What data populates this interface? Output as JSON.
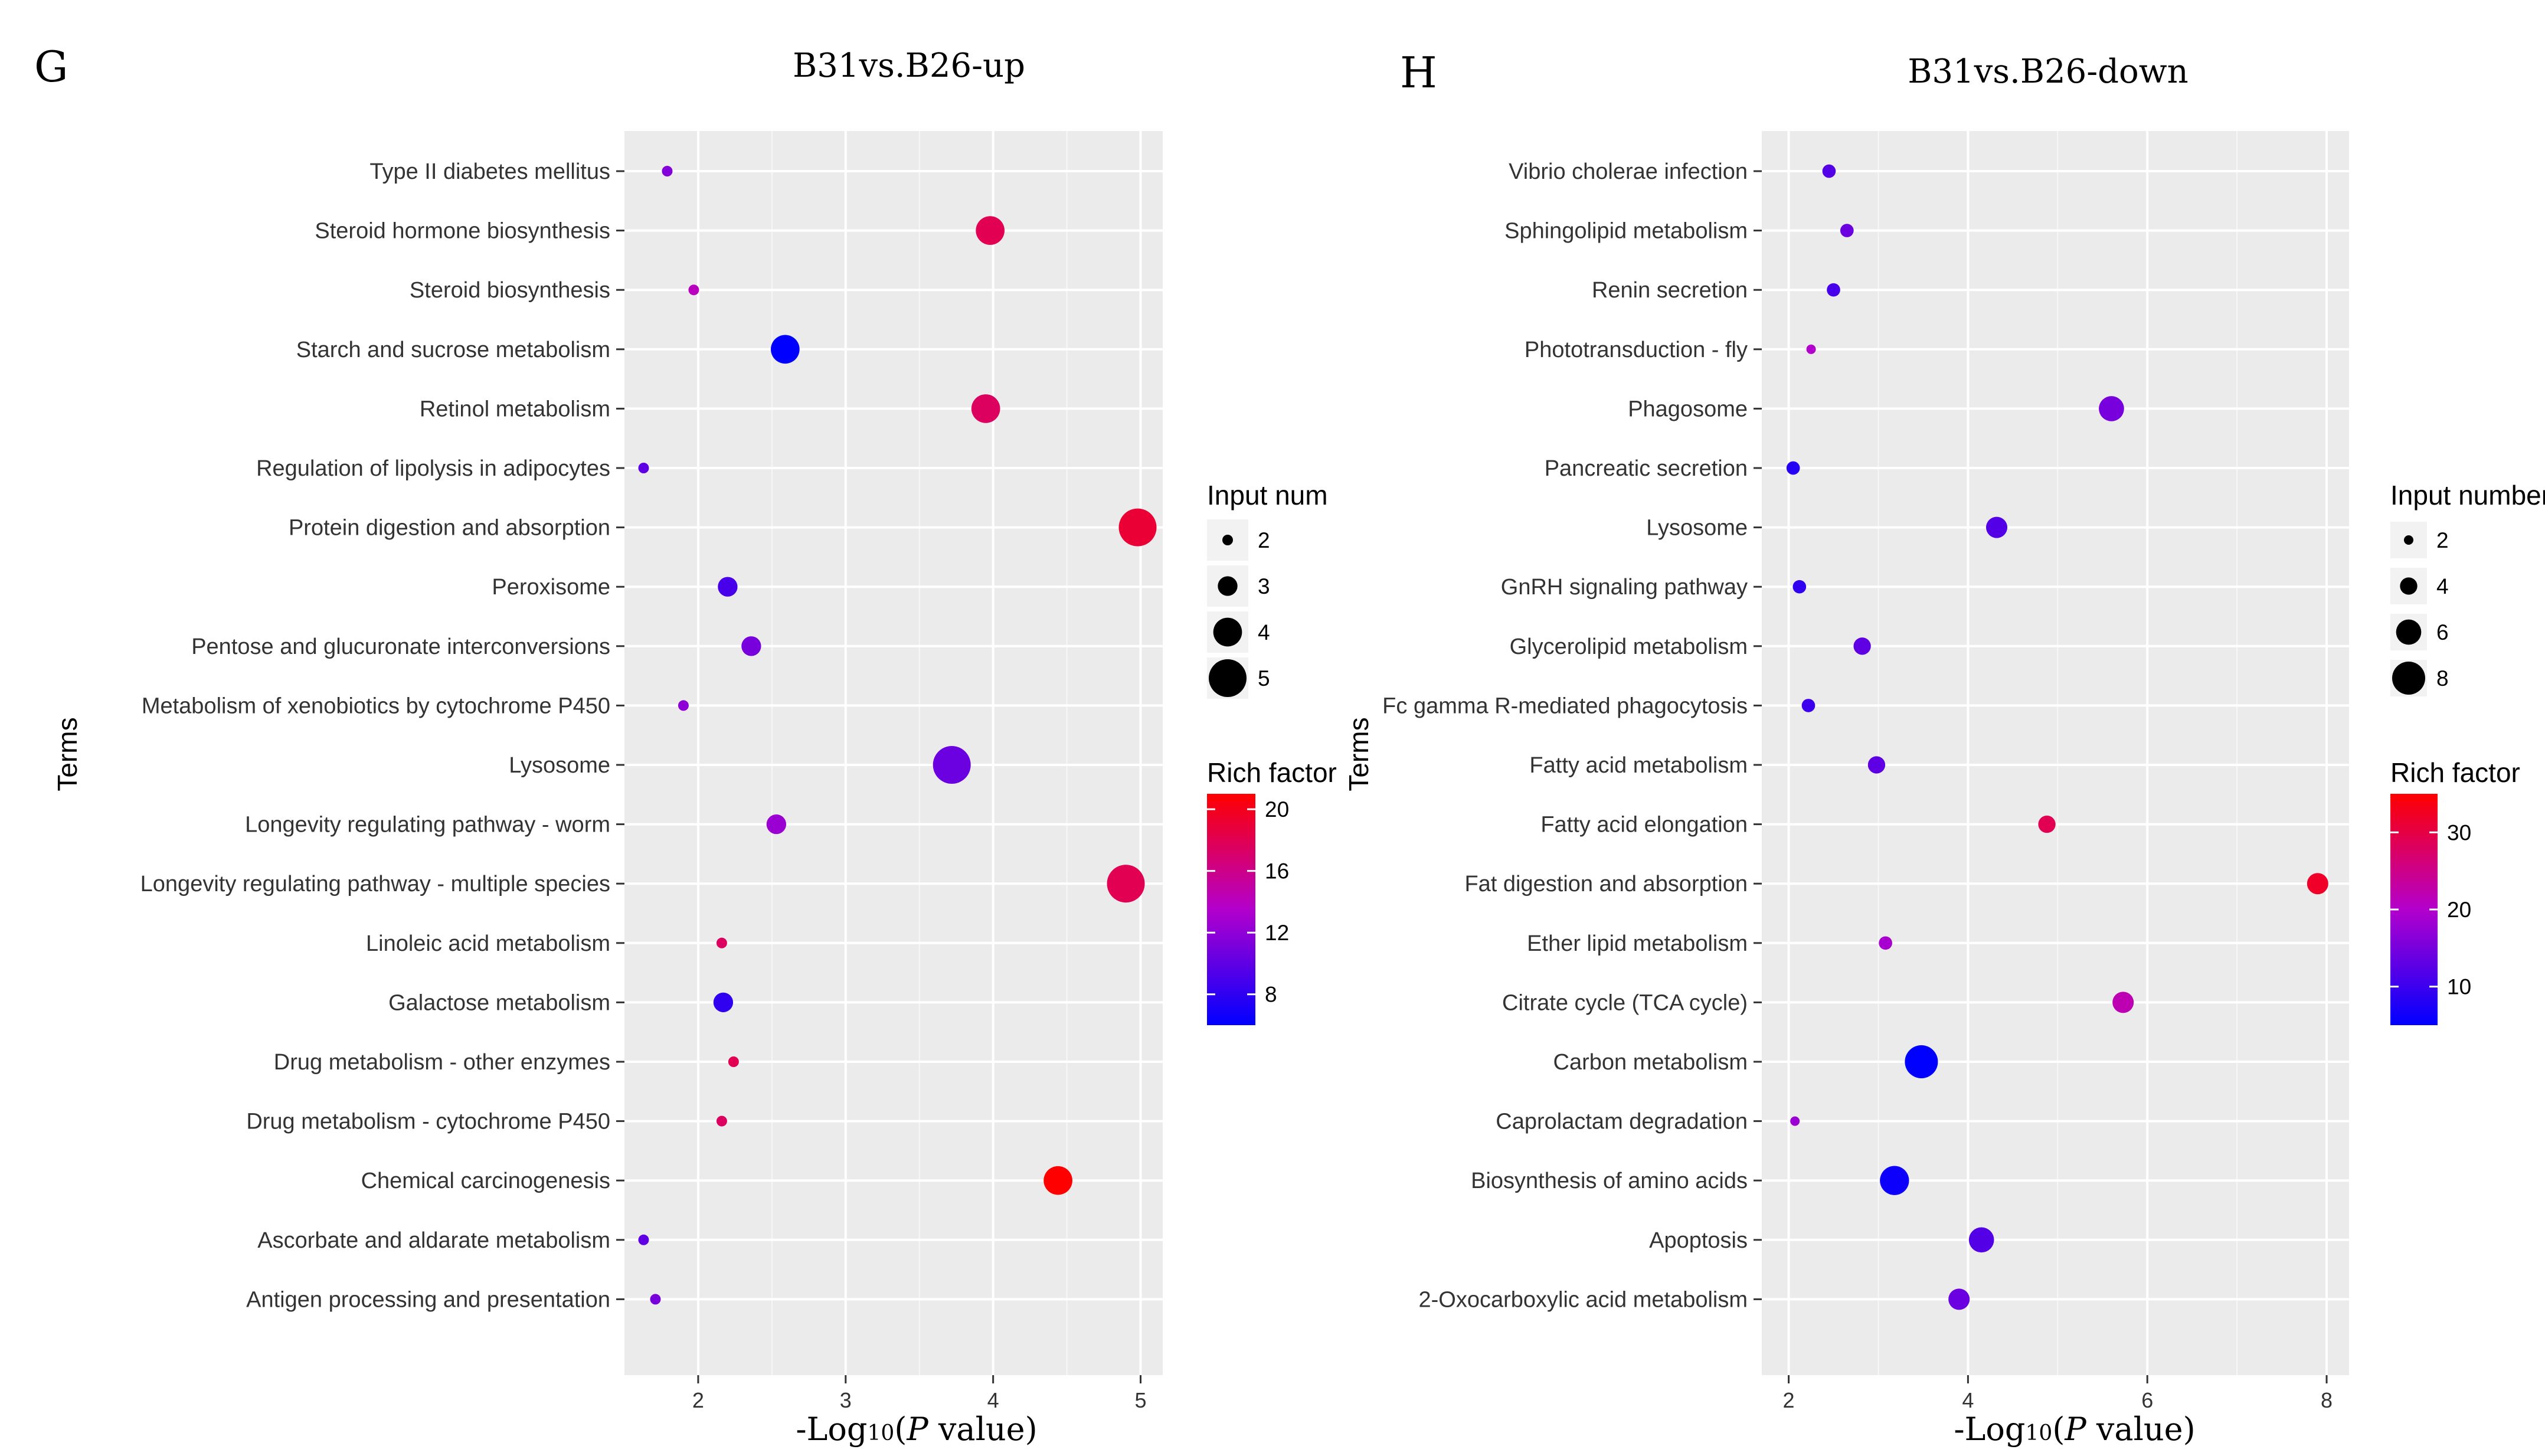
{
  "chart_data": [
    {
      "panel": "G",
      "type": "scatter",
      "title": "B31vs.B26-up",
      "ylabel": "Terms",
      "xlabel": {
        "pre": "-Log",
        "sub": "10",
        "mid": "(",
        "italic": "P",
        "post": " value)"
      },
      "xlim": [
        1.5,
        5.15
      ],
      "xticks": [
        2,
        3,
        4,
        5
      ],
      "terms": [
        "Type II diabetes mellitus",
        "Steroid hormone biosynthesis",
        "Steroid biosynthesis",
        "Starch and sucrose metabolism",
        "Retinol metabolism",
        "Regulation of lipolysis in adipocytes",
        "Protein digestion and absorption",
        "Peroxisome",
        "Pentose and glucuronate interconversions",
        "Metabolism of xenobiotics by cytochrome P450",
        "Lysosome",
        "Longevity regulating pathway - worm",
        "Longevity regulating pathway - multiple species",
        "Linoleic acid metabolism",
        "Galactose metabolism",
        "Drug metabolism - other enzymes",
        "Drug metabolism - cytochrome P450",
        "Chemical carcinogenesis",
        "Ascorbate and aldarate metabolism",
        "Antigen processing and presentation"
      ],
      "points": [
        {
          "term": "Type II diabetes mellitus",
          "x": 1.79,
          "size": 2,
          "rich": 11.5
        },
        {
          "term": "Steroid hormone biosynthesis",
          "x": 3.98,
          "size": 4,
          "rich": 18
        },
        {
          "term": "Steroid biosynthesis",
          "x": 1.97,
          "size": 2,
          "rich": 14
        },
        {
          "term": "Starch and sucrose metabolism",
          "x": 2.59,
          "size": 4,
          "rich": 6
        },
        {
          "term": "Retinol metabolism",
          "x": 3.95,
          "size": 4,
          "rich": 17.5
        },
        {
          "term": "Regulation of lipolysis in adipocytes",
          "x": 1.63,
          "size": 2,
          "rich": 10
        },
        {
          "term": "Protein digestion and absorption",
          "x": 4.98,
          "size": 5,
          "rich": 19
        },
        {
          "term": "Peroxisome",
          "x": 2.2,
          "size": 3,
          "rich": 9
        },
        {
          "term": "Pentose and glucuronate interconversions",
          "x": 2.36,
          "size": 3,
          "rich": 11
        },
        {
          "term": "Metabolism of xenobiotics by cytochrome P450",
          "x": 1.9,
          "size": 2,
          "rich": 12
        },
        {
          "term": "Lysosome",
          "x": 3.72,
          "size": 5,
          "rich": 10.5
        },
        {
          "term": "Longevity regulating pathway - worm",
          "x": 2.53,
          "size": 3,
          "rich": 12.5
        },
        {
          "term": "Longevity regulating pathway - multiple species",
          "x": 4.9,
          "size": 5,
          "rich": 18
        },
        {
          "term": "Linoleic acid metabolism",
          "x": 2.16,
          "size": 2,
          "rich": 17.5
        },
        {
          "term": "Galactose metabolism",
          "x": 2.17,
          "size": 3,
          "rich": 8
        },
        {
          "term": "Drug metabolism - other enzymes",
          "x": 2.24,
          "size": 2,
          "rich": 18
        },
        {
          "term": "Drug metabolism - cytochrome P450",
          "x": 2.16,
          "size": 2,
          "rich": 17.5
        },
        {
          "term": "Chemical carcinogenesis",
          "x": 4.44,
          "size": 4,
          "rich": 21
        },
        {
          "term": "Ascorbate and aldarate metabolism",
          "x": 1.63,
          "size": 2,
          "rich": 10
        },
        {
          "term": "Antigen processing and presentation",
          "x": 1.71,
          "size": 2,
          "rich": 11
        }
      ],
      "size_legend": {
        "title": "Input num",
        "values": [
          2,
          3,
          4,
          5
        ],
        "range": [
          2,
          5
        ]
      },
      "color_legend": {
        "title": "Rich factor",
        "ticks": [
          8,
          12,
          16,
          20
        ],
        "range": [
          6,
          21
        ],
        "low": "#0000ff",
        "high": "#ff0000"
      }
    },
    {
      "panel": "H",
      "type": "scatter",
      "title": "B31vs.B26-down",
      "ylabel": "Terms",
      "xlabel": {
        "pre": "-Log",
        "sub": "10",
        "mid": "(",
        "italic": "P",
        "post": " value)"
      },
      "xlim": [
        1.7,
        8.25
      ],
      "xticks": [
        2,
        4,
        6,
        8
      ],
      "terms": [
        "Vibrio cholerae infection",
        "Sphingolipid metabolism",
        "Renin secretion",
        "Phototransduction - fly",
        "Phagosome",
        "Pancreatic secretion",
        "Lysosome",
        "GnRH signaling pathway",
        "Glycerolipid metabolism",
        "Fc gamma R-mediated phagocytosis",
        "Fatty acid metabolism",
        "Fatty acid elongation",
        "Fat digestion and absorption",
        "Ether lipid metabolism",
        "Citrate cycle (TCA cycle)",
        "Carbon metabolism",
        "Caprolactam degradation",
        "Biosynthesis of amino acids",
        "Apoptosis",
        "2-Oxocarboxylic acid metabolism"
      ],
      "points": [
        {
          "term": "Vibrio cholerae infection",
          "x": 2.45,
          "size": 3,
          "rich": 12
        },
        {
          "term": "Sphingolipid metabolism",
          "x": 2.65,
          "size": 3,
          "rich": 14
        },
        {
          "term": "Renin secretion",
          "x": 2.5,
          "size": 3,
          "rich": 11
        },
        {
          "term": "Phototransduction - fly",
          "x": 2.25,
          "size": 2,
          "rich": 20
        },
        {
          "term": "Phagosome",
          "x": 5.6,
          "size": 6,
          "rich": 15
        },
        {
          "term": "Pancreatic secretion",
          "x": 2.05,
          "size": 3,
          "rich": 8
        },
        {
          "term": "Lysosome",
          "x": 4.32,
          "size": 5,
          "rich": 12
        },
        {
          "term": "GnRH signaling pathway",
          "x": 2.12,
          "size": 3,
          "rich": 9
        },
        {
          "term": "Glycerolipid metabolism",
          "x": 2.82,
          "size": 4,
          "rich": 13
        },
        {
          "term": "Fc gamma R-mediated phagocytosis",
          "x": 2.22,
          "size": 3,
          "rich": 10
        },
        {
          "term": "Fatty acid metabolism",
          "x": 2.98,
          "size": 4,
          "rich": 13
        },
        {
          "term": "Fatty acid elongation",
          "x": 4.88,
          "size": 4,
          "rich": 29
        },
        {
          "term": "Fat digestion and absorption",
          "x": 7.9,
          "size": 5,
          "rich": 32
        },
        {
          "term": "Ether lipid metabolism",
          "x": 3.08,
          "size": 3,
          "rich": 19
        },
        {
          "term": "Citrate cycle (TCA cycle)",
          "x": 5.73,
          "size": 5,
          "rich": 22
        },
        {
          "term": "Carbon metabolism",
          "x": 3.48,
          "size": 8,
          "rich": 5
        },
        {
          "term": "Caprolactam degradation",
          "x": 2.07,
          "size": 2,
          "rich": 18
        },
        {
          "term": "Biosynthesis of amino acids",
          "x": 3.18,
          "size": 7,
          "rich": 6
        },
        {
          "term": "Apoptosis",
          "x": 4.15,
          "size": 6,
          "rich": 12
        },
        {
          "term": "2-Oxocarboxylic acid metabolism",
          "x": 3.9,
          "size": 5,
          "rich": 14
        }
      ],
      "size_legend": {
        "title": "Input number",
        "values": [
          2,
          4,
          6,
          8
        ],
        "range": [
          2,
          8
        ]
      },
      "color_legend": {
        "title": "Rich factor",
        "ticks": [
          10,
          20,
          30
        ],
        "range": [
          5,
          35
        ],
        "low": "#0000ff",
        "high": "#ff0000"
      }
    }
  ]
}
